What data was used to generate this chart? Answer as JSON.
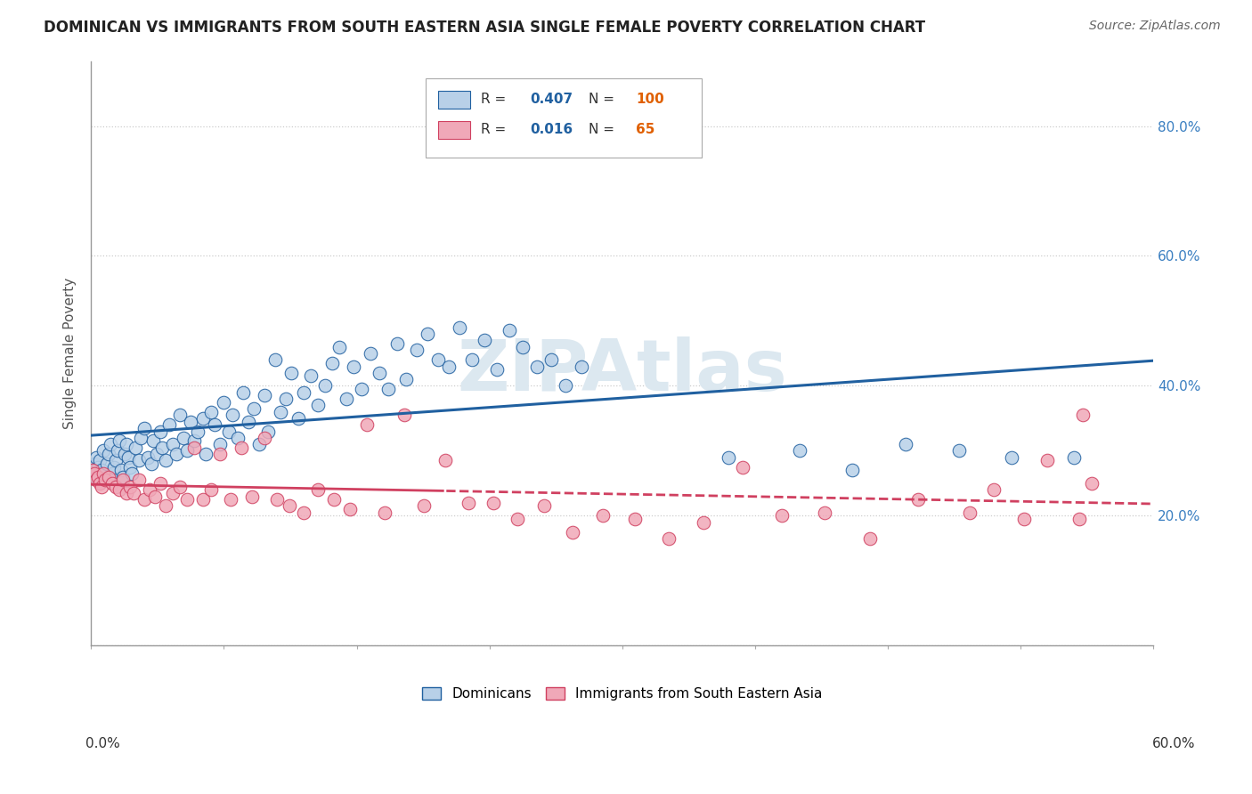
{
  "title": "DOMINICAN VS IMMIGRANTS FROM SOUTH EASTERN ASIA SINGLE FEMALE POVERTY CORRELATION CHART",
  "source": "Source: ZipAtlas.com",
  "ylabel": "Single Female Poverty",
  "right_yticks": [
    "20.0%",
    "40.0%",
    "60.0%",
    "80.0%"
  ],
  "right_ytick_vals": [
    0.2,
    0.4,
    0.6,
    0.8
  ],
  "legend_entries": [
    {
      "label": "Dominicans",
      "R": "0.407",
      "N": "100"
    },
    {
      "label": "Immigrants from South Eastern Asia",
      "R": "0.016",
      "N": "65"
    }
  ],
  "dominican_scatter_color": "#b8d0e8",
  "dominican_line_color": "#2060a0",
  "sea_scatter_color": "#f0a8b8",
  "sea_line_color": "#d04060",
  "dominican_x": [
    0.001,
    0.002,
    0.003,
    0.003,
    0.004,
    0.005,
    0.005,
    0.006,
    0.007,
    0.008,
    0.009,
    0.01,
    0.011,
    0.012,
    0.013,
    0.014,
    0.015,
    0.016,
    0.017,
    0.018,
    0.019,
    0.02,
    0.021,
    0.022,
    0.023,
    0.025,
    0.027,
    0.028,
    0.03,
    0.032,
    0.034,
    0.035,
    0.037,
    0.039,
    0.04,
    0.042,
    0.044,
    0.046,
    0.048,
    0.05,
    0.052,
    0.054,
    0.056,
    0.058,
    0.06,
    0.063,
    0.065,
    0.068,
    0.07,
    0.073,
    0.075,
    0.078,
    0.08,
    0.083,
    0.086,
    0.089,
    0.092,
    0.095,
    0.098,
    0.1,
    0.104,
    0.107,
    0.11,
    0.113,
    0.117,
    0.12,
    0.124,
    0.128,
    0.132,
    0.136,
    0.14,
    0.144,
    0.148,
    0.153,
    0.158,
    0.163,
    0.168,
    0.173,
    0.178,
    0.184,
    0.19,
    0.196,
    0.202,
    0.208,
    0.215,
    0.222,
    0.229,
    0.236,
    0.244,
    0.252,
    0.26,
    0.268,
    0.277,
    0.36,
    0.4,
    0.43,
    0.46,
    0.49,
    0.52,
    0.555
  ],
  "dominican_y": [
    0.27,
    0.28,
    0.26,
    0.29,
    0.275,
    0.265,
    0.285,
    0.27,
    0.3,
    0.255,
    0.28,
    0.295,
    0.31,
    0.265,
    0.275,
    0.285,
    0.3,
    0.315,
    0.27,
    0.26,
    0.295,
    0.31,
    0.29,
    0.275,
    0.265,
    0.305,
    0.285,
    0.32,
    0.335,
    0.29,
    0.28,
    0.315,
    0.295,
    0.33,
    0.305,
    0.285,
    0.34,
    0.31,
    0.295,
    0.355,
    0.32,
    0.3,
    0.345,
    0.315,
    0.33,
    0.35,
    0.295,
    0.36,
    0.34,
    0.31,
    0.375,
    0.33,
    0.355,
    0.32,
    0.39,
    0.345,
    0.365,
    0.31,
    0.385,
    0.33,
    0.44,
    0.36,
    0.38,
    0.42,
    0.35,
    0.39,
    0.415,
    0.37,
    0.4,
    0.435,
    0.46,
    0.38,
    0.43,
    0.395,
    0.45,
    0.42,
    0.395,
    0.465,
    0.41,
    0.455,
    0.48,
    0.44,
    0.43,
    0.49,
    0.44,
    0.47,
    0.425,
    0.485,
    0.46,
    0.43,
    0.44,
    0.4,
    0.43,
    0.29,
    0.3,
    0.27,
    0.31,
    0.3,
    0.29,
    0.29
  ],
  "sea_x": [
    0.001,
    0.002,
    0.003,
    0.004,
    0.005,
    0.006,
    0.007,
    0.008,
    0.01,
    0.012,
    0.014,
    0.016,
    0.018,
    0.02,
    0.022,
    0.024,
    0.027,
    0.03,
    0.033,
    0.036,
    0.039,
    0.042,
    0.046,
    0.05,
    0.054,
    0.058,
    0.063,
    0.068,
    0.073,
    0.079,
    0.085,
    0.091,
    0.098,
    0.105,
    0.112,
    0.12,
    0.128,
    0.137,
    0.146,
    0.156,
    0.166,
    0.177,
    0.188,
    0.2,
    0.213,
    0.227,
    0.241,
    0.256,
    0.272,
    0.289,
    0.307,
    0.326,
    0.346,
    0.368,
    0.39,
    0.414,
    0.44,
    0.467,
    0.496,
    0.527,
    0.558,
    0.56,
    0.565,
    0.54,
    0.51
  ],
  "sea_y": [
    0.27,
    0.265,
    0.255,
    0.26,
    0.25,
    0.245,
    0.265,
    0.255,
    0.26,
    0.25,
    0.245,
    0.24,
    0.255,
    0.235,
    0.245,
    0.235,
    0.255,
    0.225,
    0.24,
    0.23,
    0.25,
    0.215,
    0.235,
    0.245,
    0.225,
    0.305,
    0.225,
    0.24,
    0.295,
    0.225,
    0.305,
    0.23,
    0.32,
    0.225,
    0.215,
    0.205,
    0.24,
    0.225,
    0.21,
    0.34,
    0.205,
    0.355,
    0.215,
    0.285,
    0.22,
    0.22,
    0.195,
    0.215,
    0.175,
    0.2,
    0.195,
    0.165,
    0.19,
    0.275,
    0.2,
    0.205,
    0.165,
    0.225,
    0.205,
    0.195,
    0.195,
    0.355,
    0.25,
    0.285,
    0.24
  ],
  "xlim": [
    0.0,
    0.6
  ],
  "ylim": [
    0.0,
    0.9
  ],
  "bg_color": "#ffffff",
  "grid_color": "#cccccc",
  "watermark_color": "#dce8f0",
  "title_fontsize": 12,
  "source_fontsize": 10
}
